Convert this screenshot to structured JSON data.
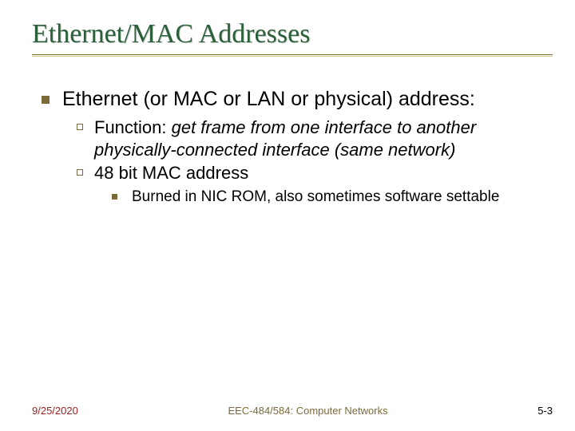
{
  "title": "Ethernet/MAC Addresses",
  "colors": {
    "title_color": "#2a603a",
    "bullet_color": "#7a6a3a",
    "date_color": "#9a1f1f",
    "footer_mid_color": "#7a6a3a",
    "background": "#ffffff"
  },
  "lvl1_text": "Ethernet (or MAC or LAN or physical) address:",
  "lvl2_item1_prefix": "Function: ",
  "lvl2_item1_italic": "get frame from one interface to another physically-connected interface (same network)",
  "lvl2_item2": "48 bit MAC address",
  "lvl3_item1": "Burned in NIC ROM, also sometimes software settable",
  "footer": {
    "date": "9/25/2020",
    "mid": "EEC-484/584: Computer Networks",
    "page": "5-3"
  }
}
